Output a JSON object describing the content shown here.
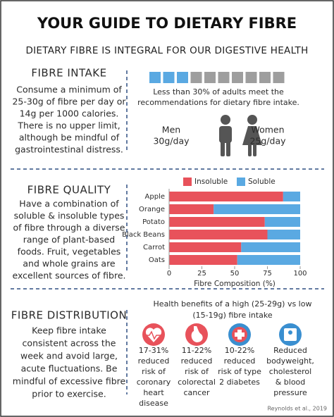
{
  "title": "YOUR GUIDE TO DIETARY FIBRE",
  "subtitle": "DIETARY FIBRE IS INTEGRAL FOR OUR DIGESTIVE HEALTH",
  "intake": {
    "heading": "FIBRE INTAKE",
    "lines": [
      "Consume a minimum of",
      "25-30g of fibre per day or",
      "14g per 1000 calories.",
      "There is no upper limit,",
      "although be mindful of",
      "gastrointestinal distress."
    ],
    "squares_total": 10,
    "squares_filled": 3,
    "stat_lines": [
      "Less than 30% of adults meet the",
      "recommendations for dietary fibre intake."
    ],
    "men": [
      "Men",
      "30g/day"
    ],
    "women": [
      "Women",
      "25g/day"
    ]
  },
  "quality": {
    "heading": "FIBRE QUALITY",
    "lines": [
      "Have a combination of",
      "soluble & insoluble types",
      "of fibre through a diverse",
      "range of plant-based",
      "foods. Fruit, vegetables",
      "and whole grains are",
      "excellent sources of fibre."
    ]
  },
  "chart_data": {
    "type": "stacked-barh",
    "categories": [
      "Apple",
      "Orange",
      "Potato",
      "Black Beans",
      "Carrot",
      "Oats"
    ],
    "series": [
      {
        "name": "Insoluble",
        "color": "#e8525b",
        "values": [
          87,
          34,
          73,
          75,
          55,
          52
        ]
      },
      {
        "name": "Soluble",
        "color": "#5aa9e2",
        "values": [
          13,
          66,
          27,
          25,
          45,
          48
        ]
      }
    ],
    "xlim": [
      0,
      100
    ],
    "xticks": [
      0,
      25,
      50,
      75,
      100
    ],
    "xlabel": "Fibre Composition (%)",
    "legend": "top"
  },
  "distribution": {
    "heading": "FIBRE DISTRIBUTION",
    "lines": [
      "Keep fibre intake",
      "consistent across the",
      "week and avoid large,",
      "acute fluctuations. Be",
      "mindful of excessive fibre",
      "prior to exercise."
    ],
    "benefits_title": [
      "Health benefits of a high (25-29g) vs low",
      "(15-19g) fibre intake"
    ],
    "benefits": [
      [
        "17-31%",
        "reduced",
        "risk of",
        "coronary",
        "heart",
        "disease"
      ],
      [
        "11-22%",
        "reduced",
        "risk of",
        "colorectal",
        "cancer"
      ],
      [
        "10-22%",
        "reduced",
        "risk of type",
        "2 diabetes"
      ],
      [
        "Reduced",
        "bodyweight,",
        "cholesterol",
        "& blood",
        "pressure"
      ]
    ]
  },
  "source": "Reynolds et al., 2019"
}
